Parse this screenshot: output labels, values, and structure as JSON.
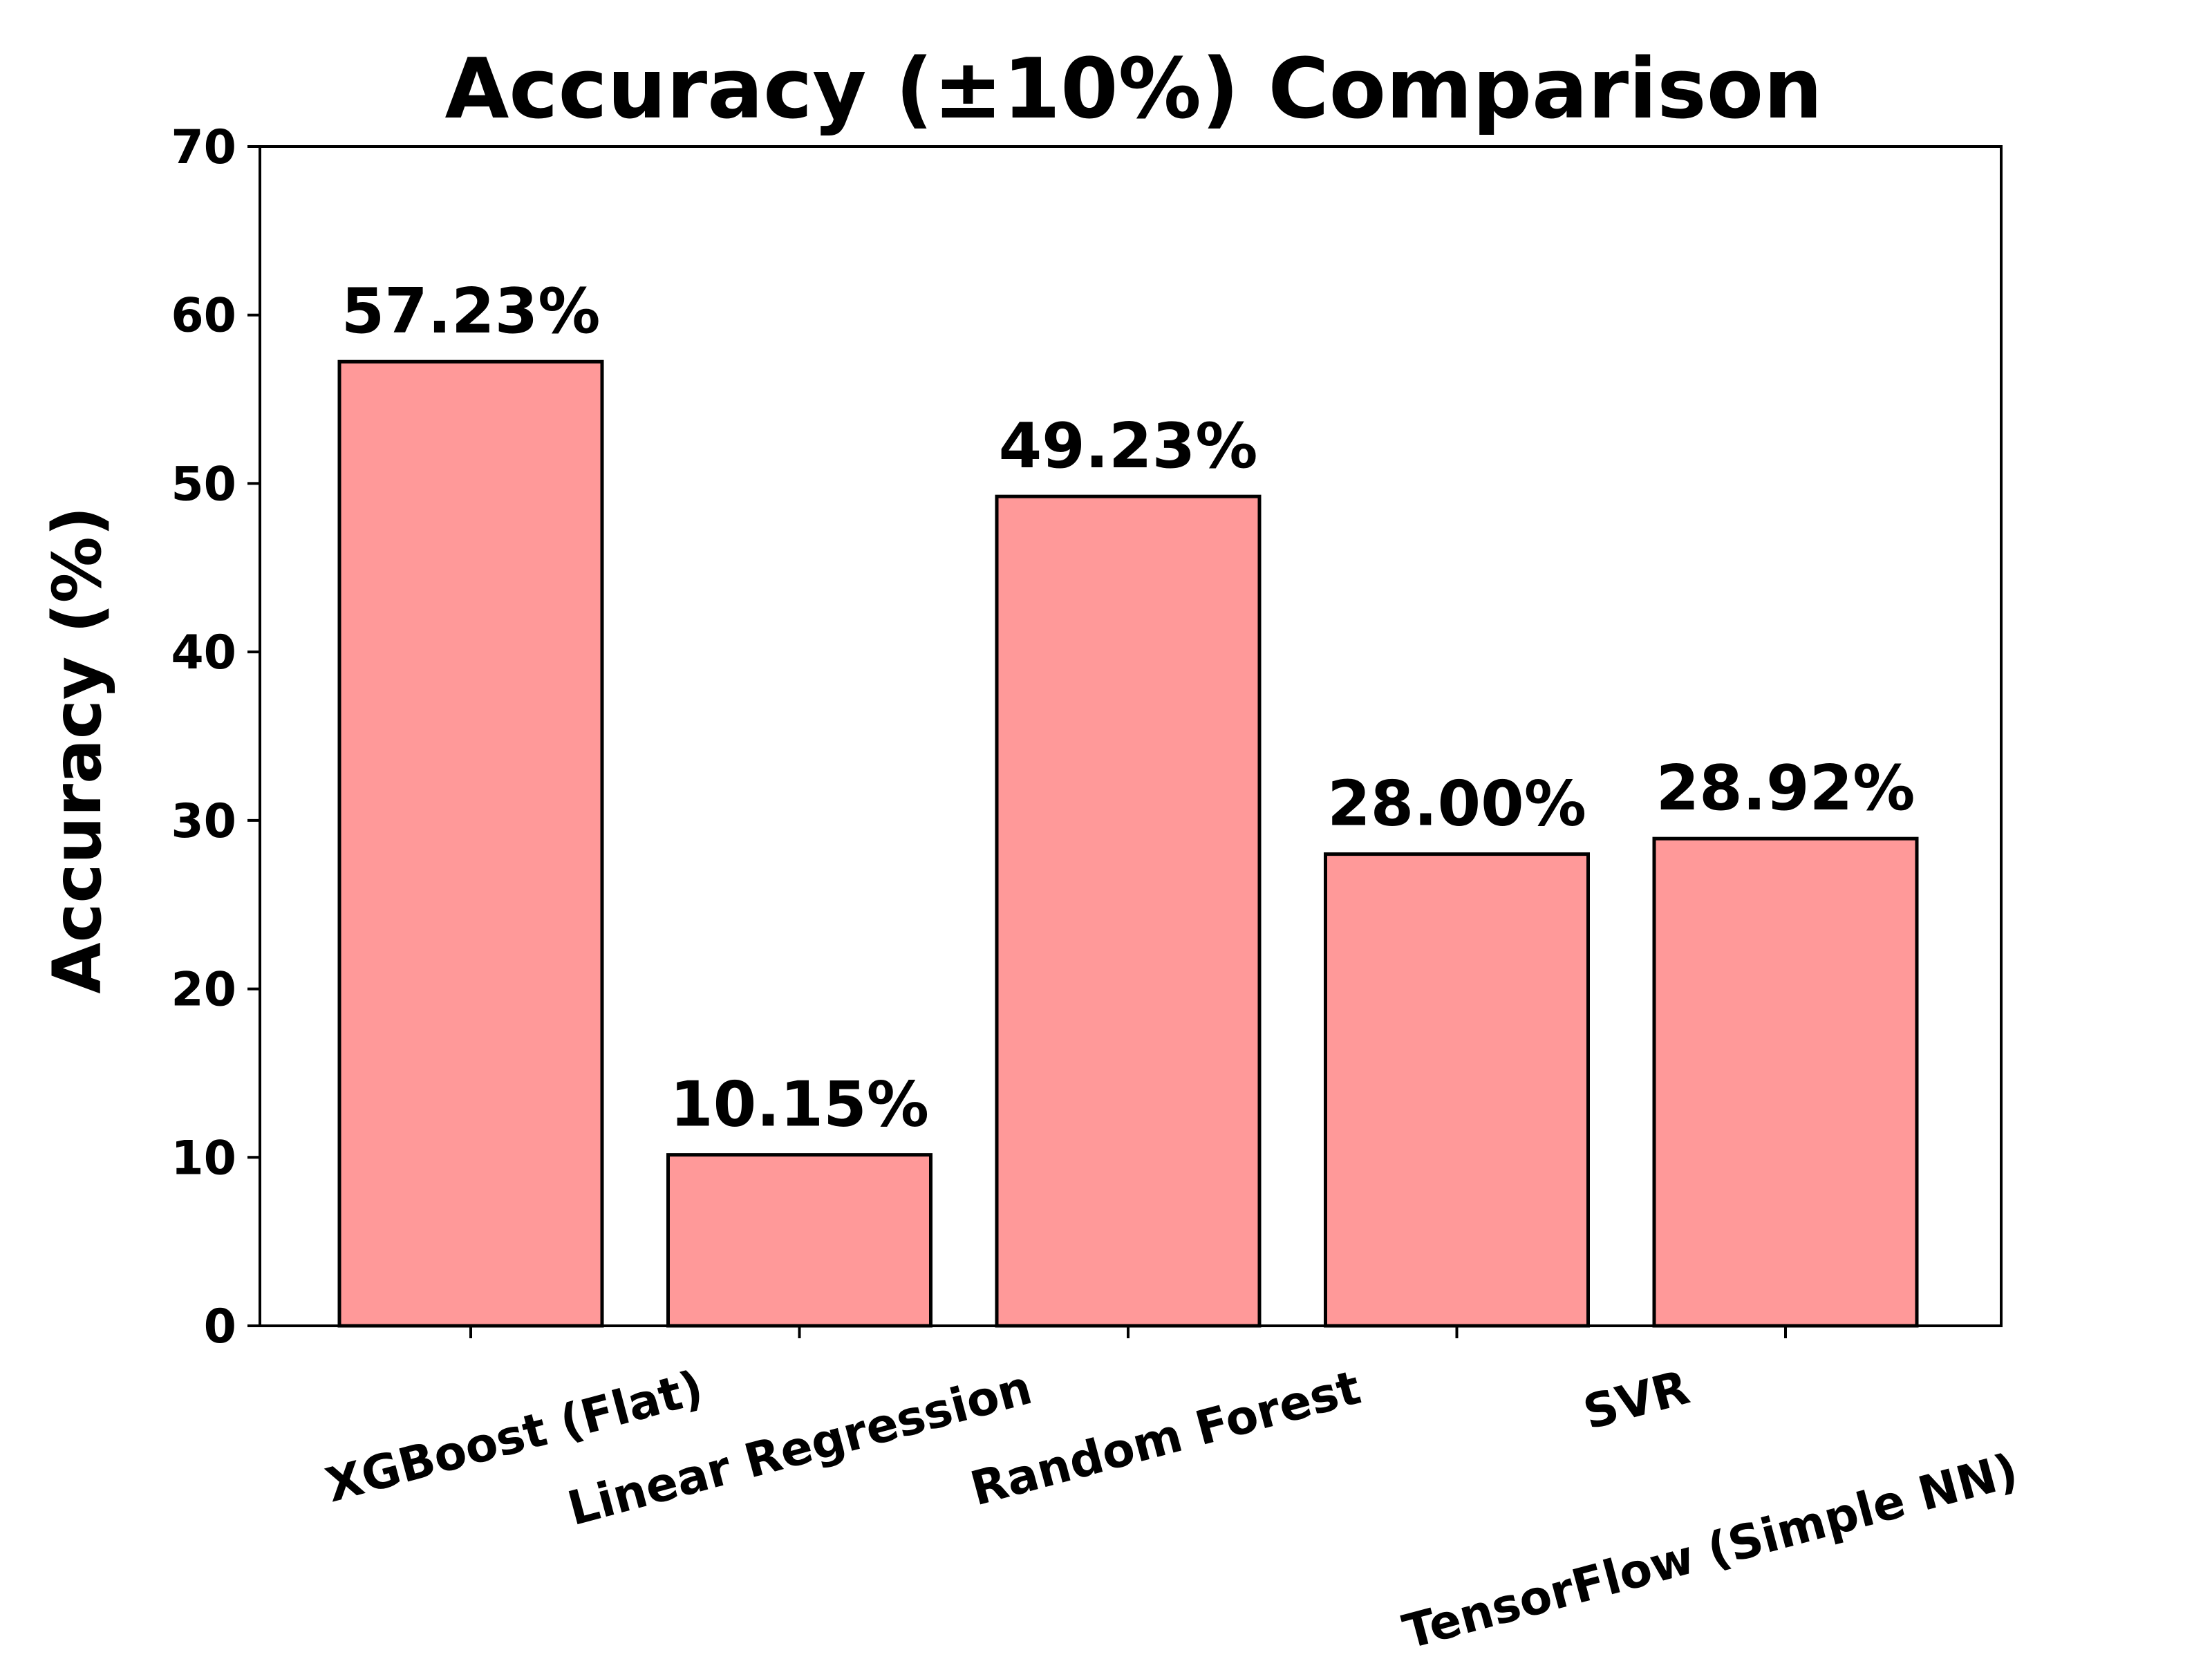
{
  "chart_data": {
    "type": "bar",
    "title": "Accuracy (±10%) Comparison",
    "xlabel": "",
    "ylabel": "Accuracy (%)",
    "ylim": [
      0,
      70
    ],
    "yticks": [
      "0",
      "10",
      "20",
      "30",
      "40",
      "50",
      "60",
      "70"
    ],
    "categories": [
      "XGBoost (Flat)",
      "Linear Regression",
      "Random Forest",
      "SVR",
      "TensorFlow (Simple NN)"
    ],
    "values": [
      57.23,
      10.15,
      49.23,
      28.0,
      28.92
    ],
    "value_labels": [
      "57.23%",
      "10.15%",
      "49.23%",
      "28.00%",
      "28.92%"
    ],
    "grid": false,
    "bar_color": "#ff9999",
    "edge_color": "#000000"
  }
}
